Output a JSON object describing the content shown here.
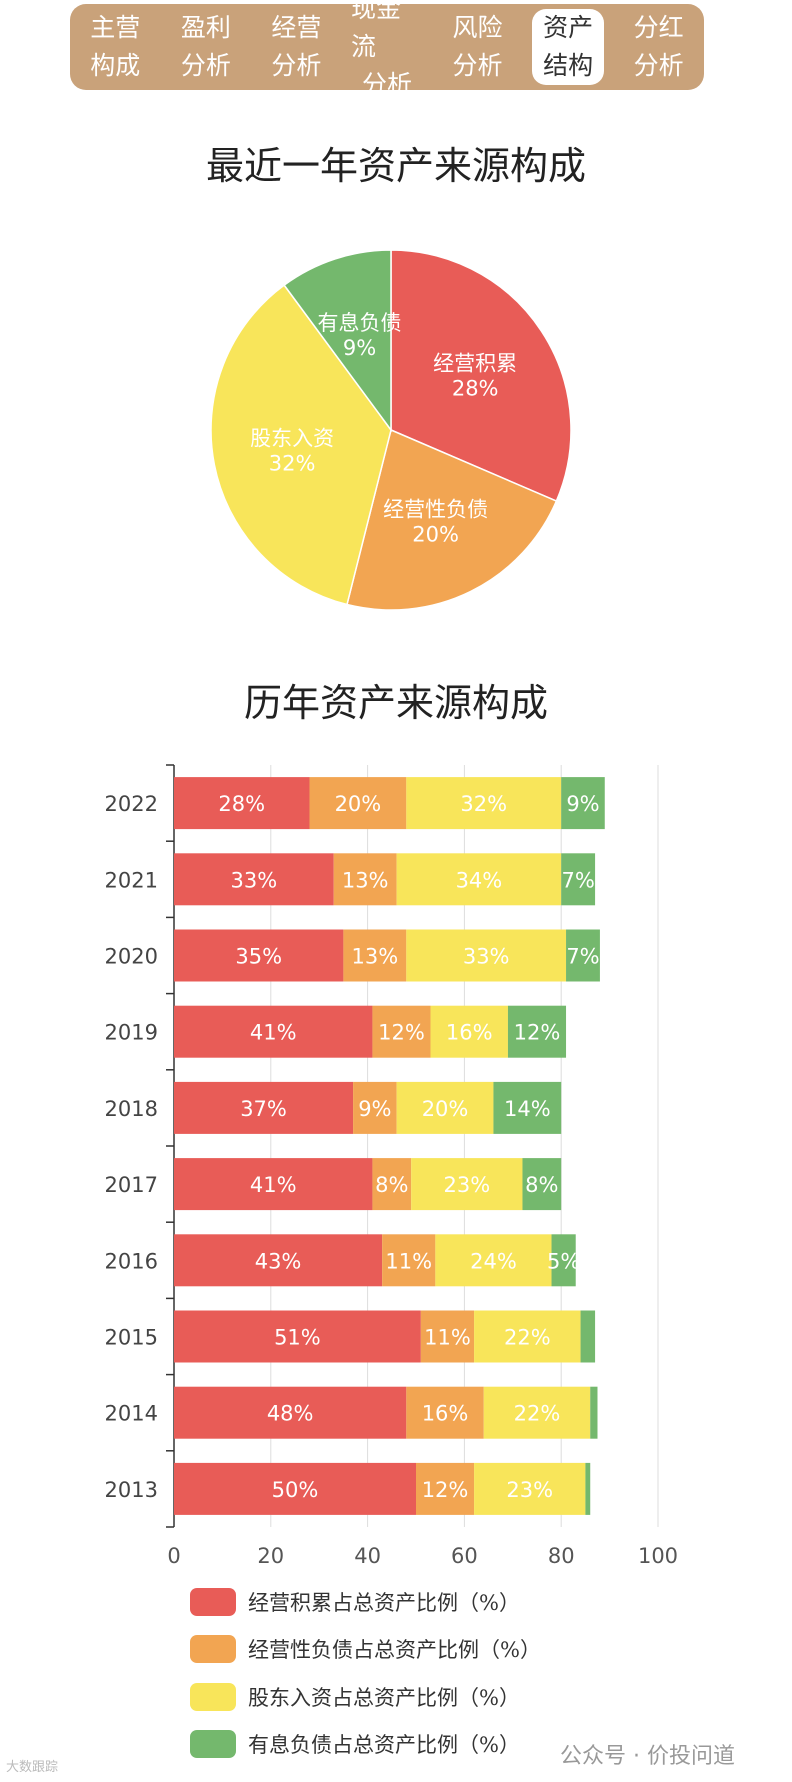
{
  "tabs": [
    {
      "line1": "主营",
      "line2": "构成",
      "active": false
    },
    {
      "line1": "盈利",
      "line2": "分析",
      "active": false
    },
    {
      "line1": "经营",
      "line2": "分析",
      "active": false
    },
    {
      "line1": "现金流",
      "line2": "分析",
      "active": false
    },
    {
      "line1": "风险",
      "line2": "分析",
      "active": false
    },
    {
      "line1": "资产",
      "line2": "结构",
      "active": true
    },
    {
      "line1": "分红",
      "line2": "分析",
      "active": false
    }
  ],
  "colors": {
    "red": "#e85c57",
    "orange": "#f2a552",
    "yellow": "#f8e55a",
    "green": "#74b86d",
    "tab_bg": "#c9a27a"
  },
  "chart_data": [
    {
      "type": "pie",
      "title": "最近一年资产来源构成",
      "slices": [
        {
          "label": "经营积累",
          "value": 28,
          "display": "28%"
        },
        {
          "label": "经营性负债",
          "value": 20,
          "display": "20%"
        },
        {
          "label": "股东入资",
          "value": 32,
          "display": "32%"
        },
        {
          "label": "有息负债",
          "value": 9,
          "display": "9%"
        }
      ]
    },
    {
      "type": "bar",
      "orientation": "horizontal",
      "stacked": true,
      "title": "历年资产来源构成",
      "categories": [
        "2022",
        "2021",
        "2020",
        "2019",
        "2018",
        "2017",
        "2016",
        "2015",
        "2014",
        "2013"
      ],
      "xlim": [
        0,
        100
      ],
      "xticks": [
        0,
        20,
        40,
        60,
        80,
        100
      ],
      "grid": true,
      "legend_position": "bottom",
      "series": [
        {
          "name": "经营积累占总资产比例（%）",
          "values": [
            28,
            33,
            35,
            41,
            37,
            41,
            43,
            51,
            48,
            50
          ],
          "labels": [
            "28%",
            "33%",
            "35%",
            "41%",
            "37%",
            "41%",
            "43%",
            "51%",
            "48%",
            "50%"
          ]
        },
        {
          "name": "经营性负债占总资产比例（%）",
          "values": [
            20,
            13,
            13,
            12,
            9,
            8,
            11,
            11,
            16,
            12
          ],
          "labels": [
            "20%",
            "13%",
            "13%",
            "12%",
            "9%",
            "8%",
            "11%",
            "11%",
            "16%",
            "12%"
          ]
        },
        {
          "name": "股东入资占总资产比例（%）",
          "values": [
            32,
            34,
            33,
            16,
            20,
            23,
            24,
            22,
            22,
            23
          ],
          "labels": [
            "32%",
            "34%",
            "33%",
            "16%",
            "20%",
            "23%",
            "24%",
            "22%",
            "22%",
            "23%"
          ]
        },
        {
          "name": "有息负债占总资产比例（%）",
          "values": [
            9,
            7,
            7,
            12,
            14,
            8,
            5,
            3,
            1.5,
            1
          ],
          "labels": [
            "9%",
            "7%",
            "7%",
            "12%",
            "14%",
            "8%",
            "5%",
            "",
            "",
            ""
          ]
        }
      ]
    }
  ],
  "watermark": {
    "left": "大数跟踪",
    "right": "公众号 · 价投问道"
  }
}
